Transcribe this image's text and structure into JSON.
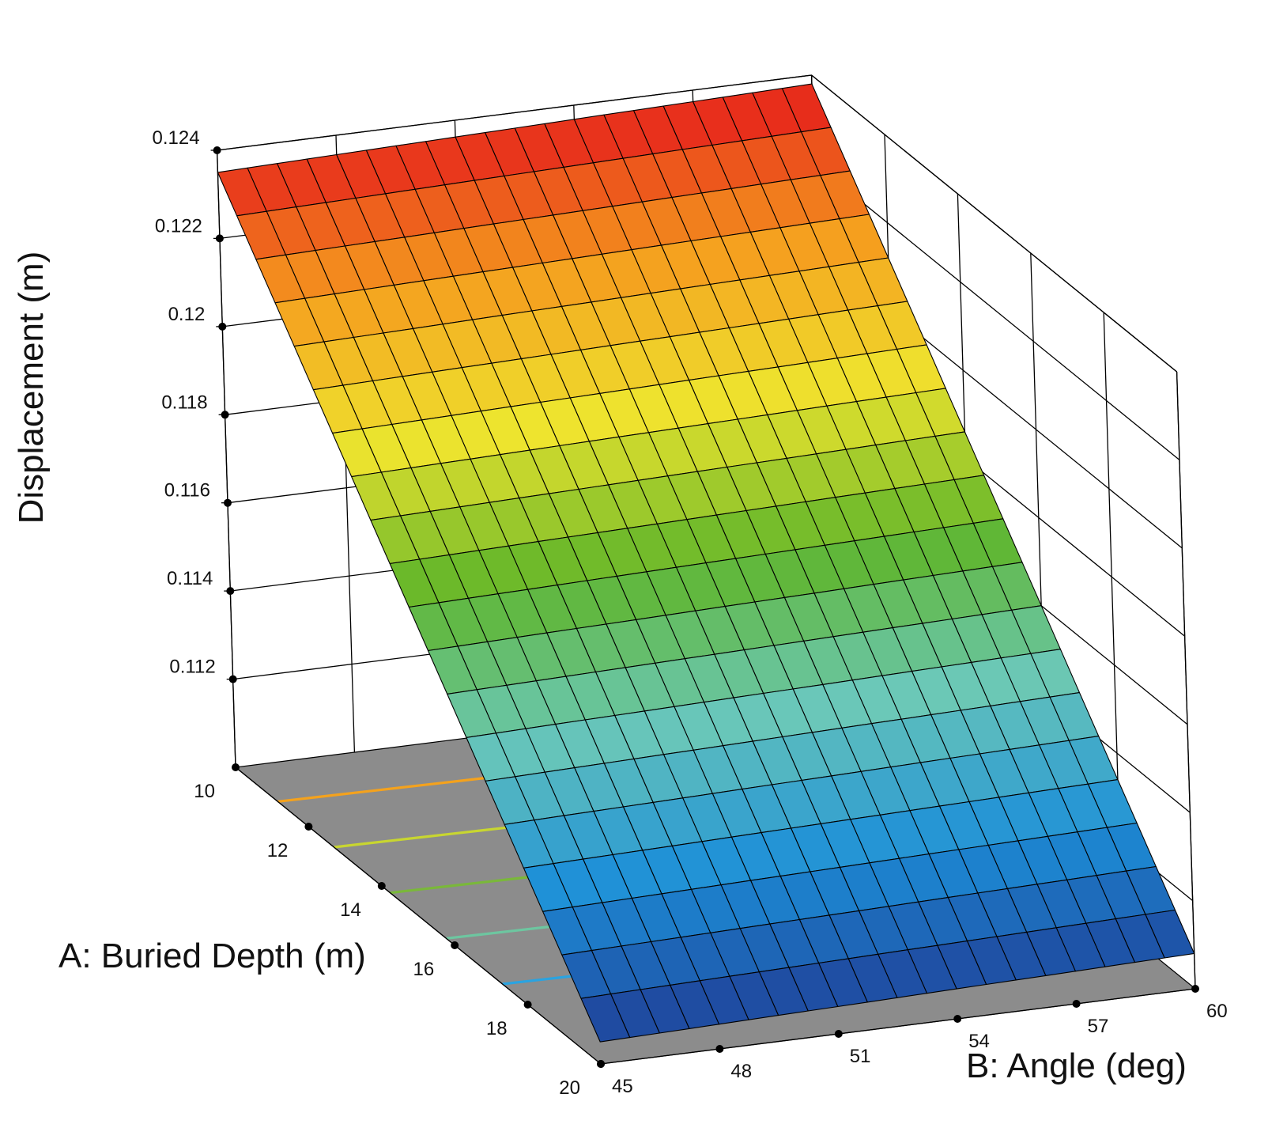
{
  "chart_data": {
    "type": "surface",
    "title": "",
    "xlabel": "A: Buried Depth (m)",
    "ylabel": "B: Angle (deg)",
    "zlabel": "Displacement (m)",
    "x_ticks": [
      10,
      12,
      14,
      16,
      18,
      20
    ],
    "y_ticks": [
      45,
      48,
      51,
      54,
      57,
      60
    ],
    "z_ticks": [
      0.112,
      0.114,
      0.116,
      0.118,
      0.12,
      0.122,
      0.124
    ],
    "x_range": [
      10,
      20
    ],
    "y_range": [
      45,
      60
    ],
    "z_range": [
      0.11,
      0.124
    ],
    "surface": {
      "model": "z = a + bx*(x - 10)",
      "grid": [
        20,
        20
      ],
      "corners": [
        {
          "x": 10,
          "y": 45,
          "z": 0.1235
        },
        {
          "x": 10,
          "y": 60,
          "z": 0.1238
        },
        {
          "x": 20,
          "y": 45,
          "z": 0.1105
        },
        {
          "x": 20,
          "y": 60,
          "z": 0.1108
        }
      ]
    },
    "color_map": [
      "#1f3f97",
      "#1d8fd8",
      "#6bc8b8",
      "#5fb52a",
      "#eee42e",
      "#f59d1e",
      "#e5191b"
    ],
    "floor_contours": [
      {
        "z": 0.122,
        "color": "#f4a21d"
      },
      {
        "z": 0.12,
        "color": "#c8d630"
      },
      {
        "z": 0.118,
        "color": "#7ab83a"
      },
      {
        "z": 0.116,
        "color": "#6dc6a0"
      },
      {
        "z": 0.114,
        "color": "#2aa3e0"
      }
    ],
    "grid": true
  }
}
